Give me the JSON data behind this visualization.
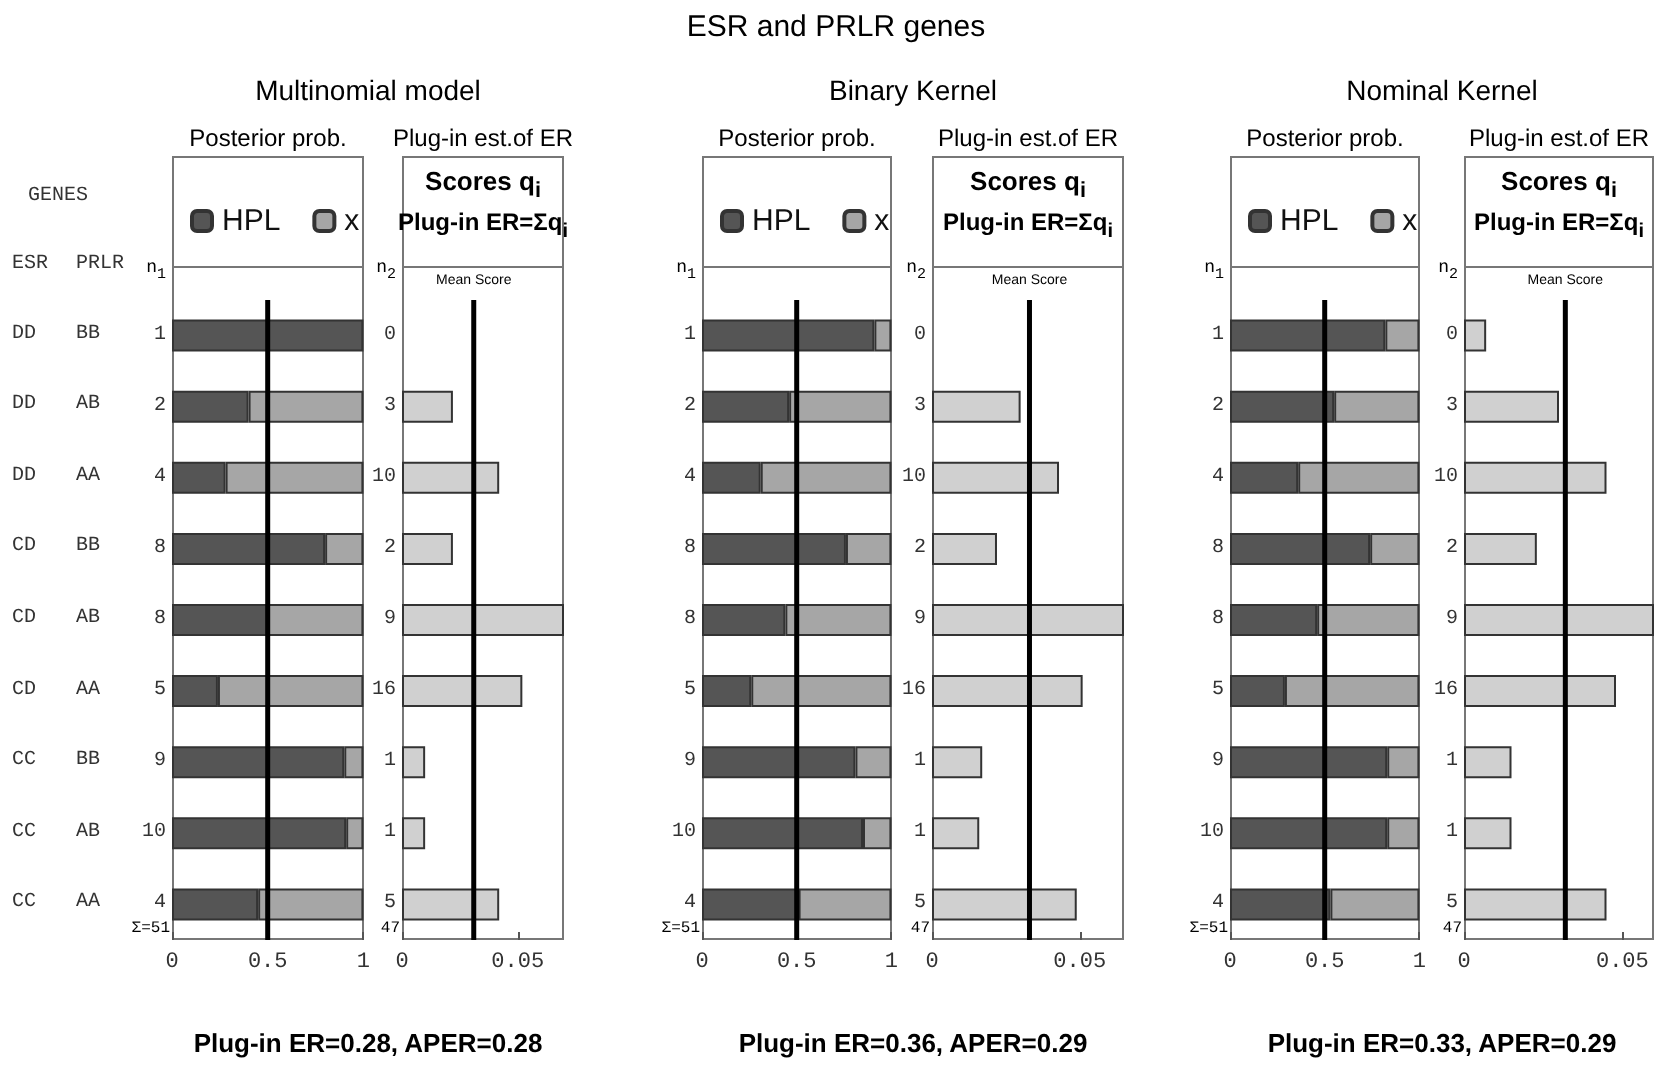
{
  "chart_data": [
    {
      "type": "other",
      "title": "ESR and PRLR genes",
      "subtitle": "GENES",
      "annotations": [
        "ESR",
        "PRLR",
        "DD",
        "BB",
        "DD",
        "AB",
        "DD",
        "AA",
        "CD",
        "BB",
        "CD",
        "AB",
        "CD",
        "AA",
        "CC",
        "BB",
        "CC",
        "AB",
        "CC",
        "AA"
      ]
    },
    {
      "type": "bar",
      "orientation": "horizontal",
      "stacked": true,
      "title": "Posterior prob.",
      "subtitle": "Multinomial model",
      "ylabel": "n$_{1}$",
      "categories": [
        "1",
        "2",
        "4",
        "8",
        "8",
        "5",
        "9",
        "10",
        "4"
      ],
      "series": [
        {
          "name": "HPL",
          "color": "#555555",
          "values": [
            1.0,
            0.4,
            0.28,
            0.8,
            0.5,
            0.24,
            0.9,
            0.91,
            0.45
          ]
        },
        {
          "name": "x",
          "color": "#a6a6a6",
          "values": [
            0,
            0.6,
            0.72,
            0.2,
            0.5,
            0.76,
            0.1,
            0.09,
            0.55
          ]
        }
      ],
      "xlim": [
        0,
        1
      ],
      "xticks": [
        0,
        0.5,
        1
      ],
      "ref_lines": [
        {
          "axis": "x",
          "value": 0.5
        }
      ],
      "legend": "top",
      "annotations": [
        "Σ=51",
        "Plug-in ER=0.28,   APER=0.28"
      ]
    },
    {
      "type": "bar",
      "orientation": "horizontal",
      "title": "Plug-in est.of ER",
      "ylabel": "n$_{2}$",
      "categories": [
        "0",
        "3",
        "10",
        "2",
        "9",
        "16",
        "1",
        "1",
        "5"
      ],
      "color": "#d0d0d0",
      "values": [
        0,
        0.022,
        0.042,
        0.022,
        0.07,
        0.052,
        0.01,
        0.01,
        0.042
      ],
      "xlim": [
        0,
        0.07
      ],
      "xticks": [
        0,
        0.05
      ],
      "ref_lines": [
        {
          "axis": "x",
          "value": 0.031,
          "label": "Mean Score"
        }
      ],
      "annotations": [
        "47",
        "Scores q$_{i}$",
        "Plug-in ER=Σq$_{i}$"
      ]
    },
    {
      "type": "bar",
      "orientation": "horizontal",
      "stacked": true,
      "title": "Posterior prob.",
      "subtitle": "Binary Kernel",
      "ylabel": "n$_{1}$",
      "categories": [
        "1",
        "2",
        "4",
        "8",
        "8",
        "5",
        "9",
        "10",
        "4"
      ],
      "series": [
        {
          "name": "HPL",
          "color": "#555555",
          "values": [
            0.91,
            0.46,
            0.31,
            0.76,
            0.44,
            0.26,
            0.81,
            0.85,
            0.51
          ]
        },
        {
          "name": "x",
          "color": "#a6a6a6",
          "values": [
            0.09,
            0.54,
            0.69,
            0.24,
            0.56,
            0.74,
            0.19,
            0.15,
            0.49
          ]
        }
      ],
      "xlim": [
        0,
        1
      ],
      "xticks": [
        0,
        0.5,
        1
      ],
      "ref_lines": [
        {
          "axis": "x",
          "value": 0.5
        }
      ],
      "legend": "top",
      "annotations": [
        "Σ=51",
        "Plug-in ER=0.36,   APER=0.29"
      ]
    },
    {
      "type": "bar",
      "orientation": "horizontal",
      "title": "Plug-in est.of ER",
      "ylabel": "n$_{2}$",
      "categories": [
        "0",
        "3",
        "10",
        "2",
        "9",
        "16",
        "1",
        "1",
        "5"
      ],
      "color": "#d0d0d0",
      "values": [
        0,
        0.03,
        0.043,
        0.022,
        0.065,
        0.051,
        0.017,
        0.016,
        0.049
      ],
      "xlim": [
        0,
        0.065
      ],
      "xticks": [
        0,
        0.05
      ],
      "ref_lines": [
        {
          "axis": "x",
          "value": 0.033,
          "label": "Mean Score"
        }
      ],
      "annotations": [
        "47",
        "Scores q$_{i}$",
        "Plug-in ER=Σq$_{i}$"
      ]
    },
    {
      "type": "bar",
      "orientation": "horizontal",
      "stacked": true,
      "title": "Posterior prob.",
      "subtitle": "Nominal Kernel",
      "ylabel": "n$_{1}$",
      "categories": [
        "1",
        "2",
        "4",
        "8",
        "8",
        "5",
        "9",
        "10",
        "4"
      ],
      "series": [
        {
          "name": "HPL",
          "color": "#555555",
          "values": [
            0.82,
            0.55,
            0.36,
            0.74,
            0.46,
            0.29,
            0.83,
            0.83,
            0.53
          ]
        },
        {
          "name": "x",
          "color": "#a6a6a6",
          "values": [
            0.18,
            0.45,
            0.64,
            0.26,
            0.54,
            0.71,
            0.17,
            0.17,
            0.47
          ]
        }
      ],
      "xlim": [
        0,
        1
      ],
      "xticks": [
        0,
        0.5,
        1
      ],
      "ref_lines": [
        {
          "axis": "x",
          "value": 0.5
        }
      ],
      "legend": "top",
      "annotations": [
        "Σ=51",
        "Plug-in ER=0.33,   APER=0.29"
      ]
    },
    {
      "type": "bar",
      "orientation": "horizontal",
      "title": "Plug-in est.of ER",
      "ylabel": "n$_{2}$",
      "categories": [
        "0",
        "3",
        "10",
        "2",
        "9",
        "16",
        "1",
        "1",
        "5"
      ],
      "color": "#d0d0d0",
      "values": [
        0.007,
        0.03,
        0.045,
        0.023,
        0.06,
        0.048,
        0.015,
        0.015,
        0.045
      ],
      "xlim": [
        0,
        0.06
      ],
      "xticks": [
        0,
        0.05
      ],
      "ref_lines": [
        {
          "axis": "x",
          "value": 0.032,
          "label": "Mean Score"
        }
      ],
      "annotations": [
        "47",
        "Scores q$_{i}$",
        "Plug-in ER=Σq$_{i}$"
      ]
    }
  ]
}
